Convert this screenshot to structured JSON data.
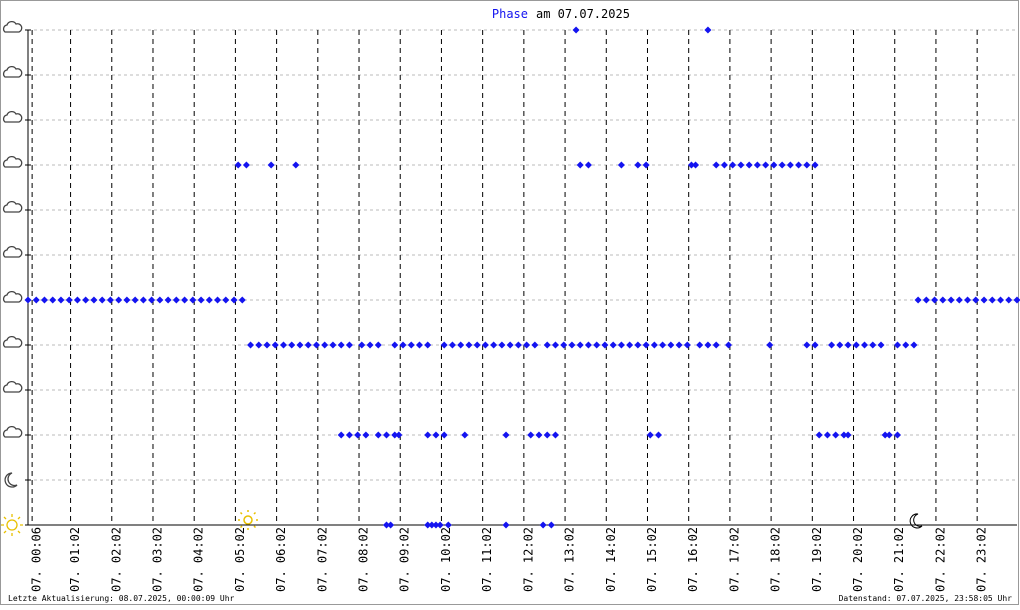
{
  "chart_data": {
    "type": "scatter",
    "title_prefix": "Phase",
    "title": "am 07.07.2025",
    "footer_left": "Letzte Aktualisierung: 08.07.2025, 00:00:09 Uhr",
    "footer_right": "Datenstand: 07.07.2025, 23:58:05 Uhr",
    "xlim": [
      0,
      24
    ],
    "ylim": [
      0,
      11
    ],
    "yticks": [
      0,
      1,
      2,
      3,
      4,
      5,
      6,
      7,
      8,
      9,
      10,
      11
    ],
    "xticks": [
      {
        "value": 0.1,
        "label": "07. 00:06"
      },
      {
        "value": 1.033,
        "label": "07. 01:02"
      },
      {
        "value": 2.033,
        "label": "07. 02:02"
      },
      {
        "value": 3.033,
        "label": "07. 03:02"
      },
      {
        "value": 4.033,
        "label": "07. 04:02"
      },
      {
        "value": 5.033,
        "label": "07. 05:02"
      },
      {
        "value": 6.033,
        "label": "07. 06:02"
      },
      {
        "value": 7.033,
        "label": "07. 07:02"
      },
      {
        "value": 8.033,
        "label": "07. 08:02"
      },
      {
        "value": 9.033,
        "label": "07. 09:02"
      },
      {
        "value": 10.033,
        "label": "07. 10:02"
      },
      {
        "value": 11.033,
        "label": "07. 11:02"
      },
      {
        "value": 12.033,
        "label": "07. 12:02"
      },
      {
        "value": 13.033,
        "label": "07. 13:02"
      },
      {
        "value": 14.033,
        "label": "07. 14:02"
      },
      {
        "value": 15.033,
        "label": "07. 15:02"
      },
      {
        "value": 16.033,
        "label": "07. 16:02"
      },
      {
        "value": 17.033,
        "label": "07. 17:02"
      },
      {
        "value": 18.033,
        "label": "07. 18:02"
      },
      {
        "value": 19.033,
        "label": "07. 19:02"
      },
      {
        "value": 20.033,
        "label": "07. 20:02"
      },
      {
        "value": 21.033,
        "label": "07. 21:02"
      },
      {
        "value": 22.033,
        "label": "07. 22:02"
      },
      {
        "value": 23.033,
        "label": "07. 23:02"
      }
    ],
    "grid": true,
    "color": "#1414f0",
    "series": [
      {
        "x": [
          0,
          0.2,
          0.4,
          0.6,
          0.8,
          1.0,
          1.2,
          1.4,
          1.6,
          1.8,
          2.0,
          2.2,
          2.4,
          2.6,
          2.8,
          3.0,
          3.2,
          3.4,
          3.6,
          3.8,
          4.0,
          4.2,
          4.4,
          4.6,
          4.8,
          5.0,
          5.2,
          21.6,
          21.8,
          22.0,
          22.2,
          22.4,
          22.6,
          22.8,
          23.0,
          23.2,
          23.4,
          23.6,
          23.8,
          24.0
        ],
        "values": [
          5,
          5,
          5,
          5,
          5,
          5,
          5,
          5,
          5,
          5,
          5,
          5,
          5,
          5,
          5,
          5,
          5,
          5,
          5,
          5,
          5,
          5,
          5,
          5,
          5,
          5,
          5,
          5,
          5,
          5,
          5,
          5,
          5,
          5,
          5,
          5,
          5,
          5,
          5,
          5
        ]
      },
      {
        "x": [
          5.4,
          5.6,
          5.8,
          6.0,
          6.2,
          6.4,
          6.6,
          6.8,
          7.0,
          7.2,
          7.4,
          7.6,
          7.8,
          8.1,
          8.3,
          8.5,
          8.9,
          9.1,
          9.3,
          9.5,
          9.7,
          10.1,
          10.3,
          10.5,
          10.7,
          10.9,
          11.1,
          11.3,
          11.5,
          11.7,
          11.9,
          12.1,
          12.3,
          12.6,
          12.8,
          13.0,
          13.2,
          13.4,
          13.6,
          13.8,
          14.0,
          14.2,
          14.4,
          14.6,
          14.8,
          15.0,
          15.2,
          15.4,
          15.6,
          15.8,
          16.0,
          16.3,
          16.5,
          16.7,
          17.0,
          18.0,
          18.9,
          19.1,
          19.5,
          19.7,
          19.9,
          20.1,
          20.3,
          20.5,
          20.7,
          21.1,
          21.3,
          21.5
        ],
        "values": [
          4,
          4,
          4,
          4,
          4,
          4,
          4,
          4,
          4,
          4,
          4,
          4,
          4,
          4,
          4,
          4,
          4,
          4,
          4,
          4,
          4,
          4,
          4,
          4,
          4,
          4,
          4,
          4,
          4,
          4,
          4,
          4,
          4,
          4,
          4,
          4,
          4,
          4,
          4,
          4,
          4,
          4,
          4,
          4,
          4,
          4,
          4,
          4,
          4,
          4,
          4,
          4,
          4,
          4,
          4,
          4,
          4,
          4,
          4,
          4,
          4,
          4,
          4,
          4,
          4,
          4,
          4,
          4
        ]
      },
      {
        "x": [
          5.1,
          5.3,
          5.9,
          6.5,
          13.4,
          13.6,
          14.4,
          14.8,
          15.0,
          16.1,
          16.2,
          16.7,
          16.9,
          17.1,
          17.3,
          17.5,
          17.7,
          17.9,
          18.1,
          18.3,
          18.5,
          18.7,
          18.9,
          19.1
        ],
        "values": [
          8,
          8,
          8,
          8,
          8,
          8,
          8,
          8,
          8,
          8,
          8,
          8,
          8,
          8,
          8,
          8,
          8,
          8,
          8,
          8,
          8,
          8,
          8,
          8
        ]
      },
      {
        "x": [
          13.3,
          16.5
        ],
        "values": [
          11,
          11
        ]
      },
      {
        "x": [
          7.6,
          7.8,
          8.0,
          8.2,
          8.5,
          8.7,
          8.9,
          9.0,
          9.7,
          9.9,
          10.1,
          10.6,
          11.6,
          12.2,
          12.4,
          12.6,
          12.8,
          15.1,
          15.3,
          19.2,
          19.4,
          19.6,
          19.8,
          19.9,
          20.8,
          20.9,
          21.1
        ],
        "values": [
          2,
          2,
          2,
          2,
          2,
          2,
          2,
          2,
          2,
          2,
          2,
          2,
          2,
          2,
          2,
          2,
          2,
          2,
          2,
          2,
          2,
          2,
          2,
          2,
          2,
          2,
          2
        ]
      },
      {
        "x": [
          8.7,
          8.8,
          9.7,
          9.8,
          9.9,
          10.0,
          10.2,
          11.6,
          12.5,
          12.7
        ],
        "values": [
          0,
          0,
          0,
          0,
          0,
          0,
          0,
          0,
          0,
          0
        ]
      }
    ]
  }
}
